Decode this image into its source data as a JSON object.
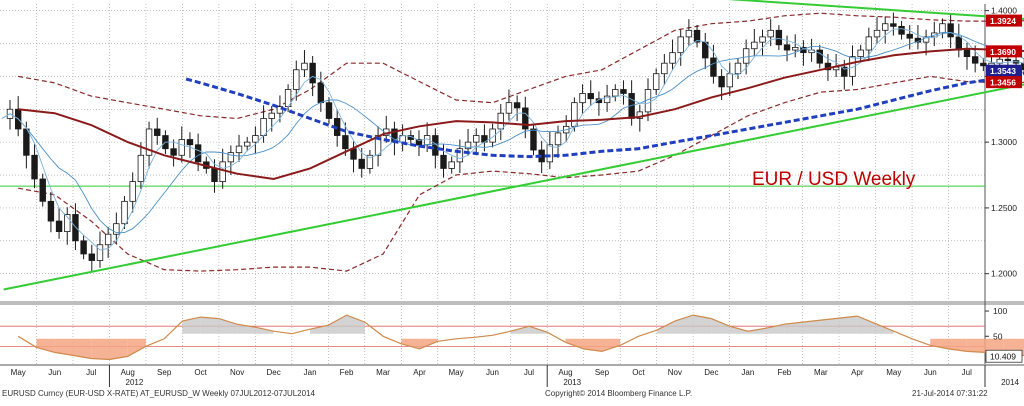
{
  "chart_data": [
    {
      "type": "candlestick",
      "title": "EUR / USD Weekly",
      "ylim": [
        1.18,
        1.405
      ],
      "yticks": [
        "1.4000",
        "1.3500",
        "1.3000",
        "1.2500",
        "1.2000"
      ],
      "ytick_values": [
        1.4,
        1.35,
        1.3,
        1.25,
        1.2
      ],
      "last_value_labels": [
        {
          "text": "1.3924",
          "value": 1.3924,
          "color": "#c00000"
        },
        {
          "text": "1.3690",
          "value": 1.369,
          "color": "#c00000"
        },
        {
          "text": "1.3543",
          "value": 1.3543,
          "color": "#1f1f8f"
        },
        {
          "text": "1.3456",
          "value": 1.3456,
          "color": "#c00000"
        }
      ],
      "horizontal_level": 1.2666,
      "x_months": [
        "May",
        "Jun",
        "Jul",
        "Aug",
        "Sep",
        "Oct",
        "Nov",
        "Dec",
        "Jan",
        "Feb",
        "Mar",
        "Apr",
        "May",
        "Jun",
        "Jul",
        "Aug",
        "Sep",
        "Oct",
        "Nov",
        "Dec",
        "Jan",
        "Feb",
        "Mar",
        "Apr",
        "May",
        "Jun",
        "Jul"
      ],
      "x_years": [
        "2012",
        "2013",
        "2014"
      ],
      "x_year_positions": [
        3,
        15,
        27
      ],
      "close_path": [
        1.318,
        1.325,
        1.31,
        1.29,
        1.272,
        1.255,
        1.24,
        1.232,
        1.245,
        1.225,
        1.215,
        1.21,
        1.222,
        1.23,
        1.238,
        1.255,
        1.27,
        1.29,
        1.31,
        1.305,
        1.295,
        1.29,
        1.302,
        1.298,
        1.285,
        1.28,
        1.27,
        1.285,
        1.292,
        1.297,
        1.3,
        1.305,
        1.318,
        1.322,
        1.327,
        1.34,
        1.355,
        1.36,
        1.345,
        1.33,
        1.318,
        1.305,
        1.295,
        1.287,
        1.28,
        1.29,
        1.305,
        1.31,
        1.3,
        1.305,
        1.302,
        1.298,
        1.305,
        1.29,
        1.28,
        1.285,
        1.295,
        1.3,
        1.305,
        1.3,
        1.31,
        1.322,
        1.33,
        1.326,
        1.31,
        1.294,
        1.285,
        1.298,
        1.307,
        1.312,
        1.33,
        1.337,
        1.333,
        1.33,
        1.335,
        1.34,
        1.337,
        1.318,
        1.323,
        1.34,
        1.352,
        1.36,
        1.368,
        1.38,
        1.385,
        1.376,
        1.364,
        1.35,
        1.342,
        1.352,
        1.36,
        1.371,
        1.376,
        1.38,
        1.385,
        1.374,
        1.37,
        1.372,
        1.368,
        1.37,
        1.36,
        1.355,
        1.357,
        1.35,
        1.365,
        1.37,
        1.38,
        1.385,
        1.39,
        1.388,
        1.382,
        1.379,
        1.376,
        1.38,
        1.383,
        1.39,
        1.38,
        1.37,
        1.365,
        1.36,
        1.358,
        1.36,
        1.363,
        1.362,
        1.36,
        1.355,
        1.355
      ],
      "ma_dashed_blue": [
        [
          4.6,
          1.348
        ],
        [
          5,
          1.345
        ],
        [
          6,
          1.337
        ],
        [
          7,
          1.328
        ],
        [
          8,
          1.318
        ],
        [
          9,
          1.308
        ],
        [
          10,
          1.302
        ],
        [
          11,
          1.297
        ],
        [
          12,
          1.293
        ],
        [
          13,
          1.29
        ],
        [
          14,
          1.289
        ],
        [
          15,
          1.29
        ],
        [
          16,
          1.293
        ],
        [
          17,
          1.295
        ],
        [
          18,
          1.3
        ],
        [
          19,
          1.305
        ],
        [
          20,
          1.31
        ],
        [
          21,
          1.315
        ],
        [
          22,
          1.32
        ],
        [
          23,
          1.325
        ],
        [
          24,
          1.332
        ],
        [
          25,
          1.339
        ],
        [
          26,
          1.345
        ],
        [
          27,
          1.349
        ],
        [
          27.8,
          1.354
        ]
      ],
      "ma_solid_darkred": [
        [
          0,
          1.325
        ],
        [
          1,
          1.322
        ],
        [
          2,
          1.313
        ],
        [
          3,
          1.3
        ],
        [
          4,
          1.29
        ],
        [
          5,
          1.283
        ],
        [
          6,
          1.276
        ],
        [
          7,
          1.272
        ],
        [
          8,
          1.28
        ],
        [
          9,
          1.293
        ],
        [
          10,
          1.306
        ],
        [
          11,
          1.312
        ],
        [
          12,
          1.316
        ],
        [
          13,
          1.315
        ],
        [
          14,
          1.313
        ],
        [
          15,
          1.316
        ],
        [
          16,
          1.317
        ],
        [
          17,
          1.319
        ],
        [
          18,
          1.325
        ],
        [
          19,
          1.334
        ],
        [
          20,
          1.341
        ],
        [
          21,
          1.349
        ],
        [
          22,
          1.355
        ],
        [
          23,
          1.361
        ],
        [
          24,
          1.366
        ],
        [
          25,
          1.369
        ],
        [
          26,
          1.371
        ],
        [
          27,
          1.37
        ],
        [
          27.8,
          1.369
        ]
      ],
      "band_upper": [
        [
          0,
          1.35
        ],
        [
          1,
          1.345
        ],
        [
          2,
          1.335
        ],
        [
          3,
          1.33
        ],
        [
          4,
          1.325
        ],
        [
          5,
          1.32
        ],
        [
          6,
          1.318
        ],
        [
          7,
          1.325
        ],
        [
          8,
          1.34
        ],
        [
          9,
          1.36
        ],
        [
          10,
          1.36
        ],
        [
          11,
          1.346
        ],
        [
          12,
          1.332
        ],
        [
          13,
          1.33
        ],
        [
          14,
          1.34
        ],
        [
          15,
          1.35
        ],
        [
          16,
          1.355
        ],
        [
          17,
          1.37
        ],
        [
          18,
          1.385
        ],
        [
          19,
          1.39
        ],
        [
          20,
          1.392
        ],
        [
          21,
          1.396
        ],
        [
          22,
          1.398
        ],
        [
          23,
          1.396
        ],
        [
          24,
          1.395
        ],
        [
          25,
          1.393
        ],
        [
          26,
          1.392
        ],
        [
          27,
          1.392
        ],
        [
          27.8,
          1.3924
        ]
      ],
      "band_lower": [
        [
          0,
          1.265
        ],
        [
          1,
          1.26
        ],
        [
          2,
          1.24
        ],
        [
          3,
          1.215
        ],
        [
          4,
          1.203
        ],
        [
          5,
          1.202
        ],
        [
          6,
          1.203
        ],
        [
          7,
          1.205
        ],
        [
          8,
          1.205
        ],
        [
          9,
          1.202
        ],
        [
          10,
          1.215
        ],
        [
          11,
          1.26
        ],
        [
          12,
          1.275
        ],
        [
          13,
          1.278
        ],
        [
          14,
          1.276
        ],
        [
          15,
          1.273
        ],
        [
          16,
          1.275
        ],
        [
          17,
          1.278
        ],
        [
          18,
          1.29
        ],
        [
          19,
          1.305
        ],
        [
          20,
          1.32
        ],
        [
          21,
          1.33
        ],
        [
          22,
          1.338
        ],
        [
          23,
          1.34
        ],
        [
          24,
          1.345
        ],
        [
          25,
          1.35
        ],
        [
          26,
          1.346
        ],
        [
          27,
          1.345
        ],
        [
          27.8,
          1.3456
        ]
      ],
      "trend_support": [
        [
          -0.4,
          1.188
        ],
        [
          28.5,
          1.349
        ]
      ],
      "trend_resistance": [
        [
          15,
          1.417
        ],
        [
          28.5,
          1.392
        ]
      ]
    },
    {
      "type": "line",
      "title": "",
      "ylim": [
        -5,
        110
      ],
      "yticks": [
        "100",
        "50"
      ],
      "ytick_values": [
        100,
        50
      ],
      "value_label": "10.409",
      "last_value": 10.409,
      "levels": [
        70,
        30
      ],
      "oscillator": [
        [
          0,
          50
        ],
        [
          0.5,
          28
        ],
        [
          1,
          18
        ],
        [
          1.5,
          12
        ],
        [
          2,
          6
        ],
        [
          2.5,
          4
        ],
        [
          3,
          10
        ],
        [
          3.5,
          30
        ],
        [
          4,
          45
        ],
        [
          4.5,
          80
        ],
        [
          5,
          88
        ],
        [
          5.5,
          85
        ],
        [
          6,
          74
        ],
        [
          6.5,
          68
        ],
        [
          7,
          60
        ],
        [
          7.5,
          55
        ],
        [
          8,
          64
        ],
        [
          8.5,
          72
        ],
        [
          9,
          92
        ],
        [
          9.5,
          78
        ],
        [
          10,
          50
        ],
        [
          10.5,
          35
        ],
        [
          11,
          25
        ],
        [
          11.5,
          40
        ],
        [
          12,
          45
        ],
        [
          12.5,
          48
        ],
        [
          13,
          52
        ],
        [
          13.5,
          60
        ],
        [
          14,
          70
        ],
        [
          14.5,
          58
        ],
        [
          15,
          38
        ],
        [
          15.5,
          25
        ],
        [
          16,
          20
        ],
        [
          16.5,
          32
        ],
        [
          17,
          50
        ],
        [
          17.5,
          62
        ],
        [
          18,
          80
        ],
        [
          18.5,
          92
        ],
        [
          19,
          85
        ],
        [
          19.5,
          70
        ],
        [
          20,
          60
        ],
        [
          20.5,
          66
        ],
        [
          21,
          74
        ],
        [
          21.5,
          78
        ],
        [
          22,
          82
        ],
        [
          22.5,
          86
        ],
        [
          23,
          90
        ],
        [
          23.5,
          75
        ],
        [
          24,
          60
        ],
        [
          24.5,
          45
        ],
        [
          25,
          32
        ],
        [
          25.5,
          25
        ],
        [
          26,
          20
        ],
        [
          26.5,
          18
        ],
        [
          27,
          15
        ],
        [
          27.5,
          12
        ],
        [
          27.8,
          10.4
        ]
      ]
    }
  ],
  "footer": {
    "left": "EURUSD Curncy (EUR-USD X-RATE) AT_EURUSD_W  Weekly 07JUL2012-07JUL2014",
    "center": "Copyright© 2014 Bloomberg Finance L.P.",
    "right": "21-Jul-2014 07:31:22"
  },
  "colors": {
    "candle_up": "#ffffff",
    "candle_down": "#1a1a1a",
    "trendline": "#33cc33",
    "ma_long": "#8b1a1a",
    "ma_mid": "#1f3fbf",
    "ma_short": "#4a90c8",
    "band": "#8b2a2a",
    "title": "#c00000",
    "osc_hot": "#f4a582",
    "osc_cold": "#c8c8c8"
  }
}
